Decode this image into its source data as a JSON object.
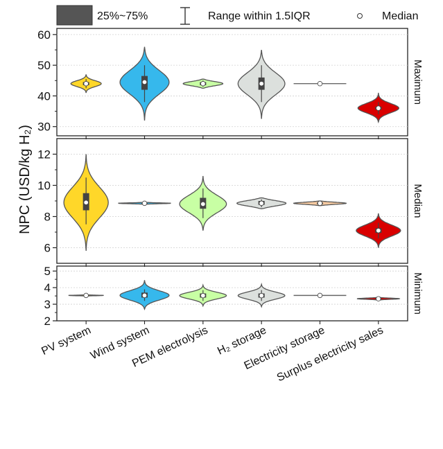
{
  "legend": {
    "box_label": "25%~75%",
    "range_label": "Range within 1.5IQR",
    "median_label": "Median"
  },
  "y_axis_label": "NPC (USD/kg H₂)",
  "categories": [
    "PV system",
    "Wind system",
    "PEM electrolysis",
    "H₂ storage",
    "Electricity storage",
    "Surplus electricity sales"
  ],
  "colors": [
    "#FFD729",
    "#36B8EC",
    "#C8FFA4",
    "#DCE0DD",
    "#F5C9A0",
    "#D90000"
  ],
  "chart_data": [
    {
      "type": "violin",
      "panel": "Maximum",
      "ylim": [
        27,
        62
      ],
      "yticks": [
        30,
        40,
        50,
        60
      ],
      "series": [
        {
          "category": "PV system",
          "median": 44.0,
          "q1": 43.5,
          "q3": 44.5,
          "whisker": [
            42.5,
            45.5
          ],
          "min": 41.0,
          "max": 47.0,
          "width": 0.26
        },
        {
          "category": "Wind system",
          "median": 44.5,
          "q1": 42.0,
          "q3": 46.5,
          "whisker": [
            38.0,
            50.0
          ],
          "min": 32.0,
          "max": 56.0,
          "width": 0.42
        },
        {
          "category": "PEM electrolysis",
          "median": 44.0,
          "q1": 43.5,
          "q3": 44.5,
          "whisker": [
            43.0,
            45.0
          ],
          "min": 42.5,
          "max": 45.5,
          "width": 0.34
        },
        {
          "category": "H₂ storage",
          "median": 44.0,
          "q1": 42.0,
          "q3": 46.0,
          "whisker": [
            38.0,
            50.0
          ],
          "min": 32.5,
          "max": 55.0,
          "width": 0.4
        },
        {
          "category": "Electricity storage",
          "median": 44.0,
          "q1": 44.0,
          "q3": 44.0,
          "whisker": [
            44.0,
            44.0
          ],
          "min": 43.9,
          "max": 44.1,
          "width": 0.45
        },
        {
          "category": "Surplus electricity sales",
          "median": 36.0,
          "q1": 35.5,
          "q3": 36.5,
          "whisker": [
            34.0,
            38.0
          ],
          "min": 31.5,
          "max": 41.0,
          "width": 0.35
        }
      ]
    },
    {
      "type": "violin",
      "panel": "Median",
      "ylim": [
        5,
        13
      ],
      "yticks": [
        6,
        8,
        10,
        12
      ],
      "series": [
        {
          "category": "PV system",
          "median": 8.9,
          "q1": 8.4,
          "q3": 9.5,
          "whisker": [
            7.5,
            10.5
          ],
          "min": 5.8,
          "max": 12.0,
          "width": 0.38
        },
        {
          "category": "Wind system",
          "median": 8.85,
          "q1": 8.83,
          "q3": 8.87,
          "whisker": [
            8.8,
            8.9
          ],
          "min": 8.78,
          "max": 8.92,
          "width": 0.45
        },
        {
          "category": "PEM electrolysis",
          "median": 8.8,
          "q1": 8.5,
          "q3": 9.2,
          "whisker": [
            7.9,
            9.8
          ],
          "min": 7.1,
          "max": 10.6,
          "width": 0.4
        },
        {
          "category": "H₂ storage",
          "median": 8.85,
          "q1": 8.75,
          "q3": 9.0,
          "whisker": [
            8.6,
            9.1
          ],
          "min": 8.5,
          "max": 9.2,
          "width": 0.42
        },
        {
          "category": "Electricity storage",
          "median": 8.85,
          "q1": 8.8,
          "q3": 8.9,
          "whisker": [
            8.75,
            8.95
          ],
          "min": 8.7,
          "max": 9.0,
          "width": 0.45
        },
        {
          "category": "Surplus electricity sales",
          "median": 7.1,
          "q1": 6.95,
          "q3": 7.25,
          "whisker": [
            6.6,
            7.6
          ],
          "min": 6.0,
          "max": 8.2,
          "width": 0.38
        }
      ]
    },
    {
      "type": "violin",
      "panel": "Minimum",
      "ylim": [
        2,
        5.3
      ],
      "yticks": [
        2,
        3,
        4,
        5
      ],
      "series": [
        {
          "category": "PV system",
          "median": 3.53,
          "q1": 3.52,
          "q3": 3.54,
          "whisker": [
            3.5,
            3.56
          ],
          "min": 3.48,
          "max": 3.58,
          "width": 0.3
        },
        {
          "category": "Wind system",
          "median": 3.53,
          "q1": 3.4,
          "q3": 3.7,
          "whisker": [
            3.2,
            3.9
          ],
          "min": 2.7,
          "max": 4.45,
          "width": 0.42
        },
        {
          "category": "PEM electrolysis",
          "median": 3.52,
          "q1": 3.4,
          "q3": 3.65,
          "whisker": [
            3.2,
            3.85
          ],
          "min": 2.9,
          "max": 4.15,
          "width": 0.4
        },
        {
          "category": "H₂ storage",
          "median": 3.52,
          "q1": 3.4,
          "q3": 3.65,
          "whisker": [
            3.2,
            3.85
          ],
          "min": 2.85,
          "max": 4.2,
          "width": 0.4
        },
        {
          "category": "Electricity storage",
          "median": 3.53,
          "q1": 3.53,
          "q3": 3.53,
          "whisker": [
            3.53,
            3.53
          ],
          "min": 3.52,
          "max": 3.54,
          "width": 0.45
        },
        {
          "category": "Surplus electricity sales",
          "median": 3.33,
          "q1": 3.31,
          "q3": 3.36,
          "whisker": [
            3.28,
            3.4
          ],
          "min": 3.25,
          "max": 3.44,
          "width": 0.36
        }
      ]
    }
  ]
}
